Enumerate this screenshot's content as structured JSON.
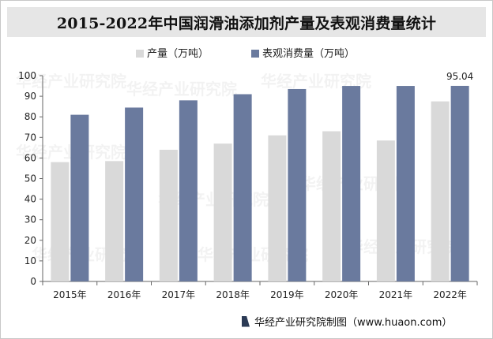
{
  "title": "2015-2022年中国润滑油添加剂产量及表观消费量统计",
  "footer": "华经产业研究院制图（www.huaon.com）",
  "watermark": "华经产业研究院",
  "colors": {
    "production": "#d9d9d9",
    "consumption": "#6a7a9e",
    "axis": "#666666",
    "title_bg": "#e6e6e6"
  },
  "chart_data": {
    "type": "bar",
    "categories": [
      "2015年",
      "2016年",
      "2017年",
      "2018年",
      "2019年",
      "2020年",
      "2021年",
      "2022年"
    ],
    "series": [
      {
        "name": "产量（万吨）",
        "values": [
          58,
          58.5,
          64,
          67,
          71,
          73,
          68.5,
          87.5
        ]
      },
      {
        "name": "表观消费量（万吨）",
        "values": [
          81,
          84.5,
          88,
          91,
          93.5,
          95,
          95,
          95.04
        ]
      }
    ],
    "data_labels": [
      {
        "series": 1,
        "index": 7,
        "text": "95.04"
      }
    ],
    "ylim": [
      0,
      100
    ],
    "yticks": [
      0,
      10,
      20,
      30,
      40,
      50,
      60,
      70,
      80,
      90,
      100
    ],
    "grid": false,
    "legend": "top"
  }
}
